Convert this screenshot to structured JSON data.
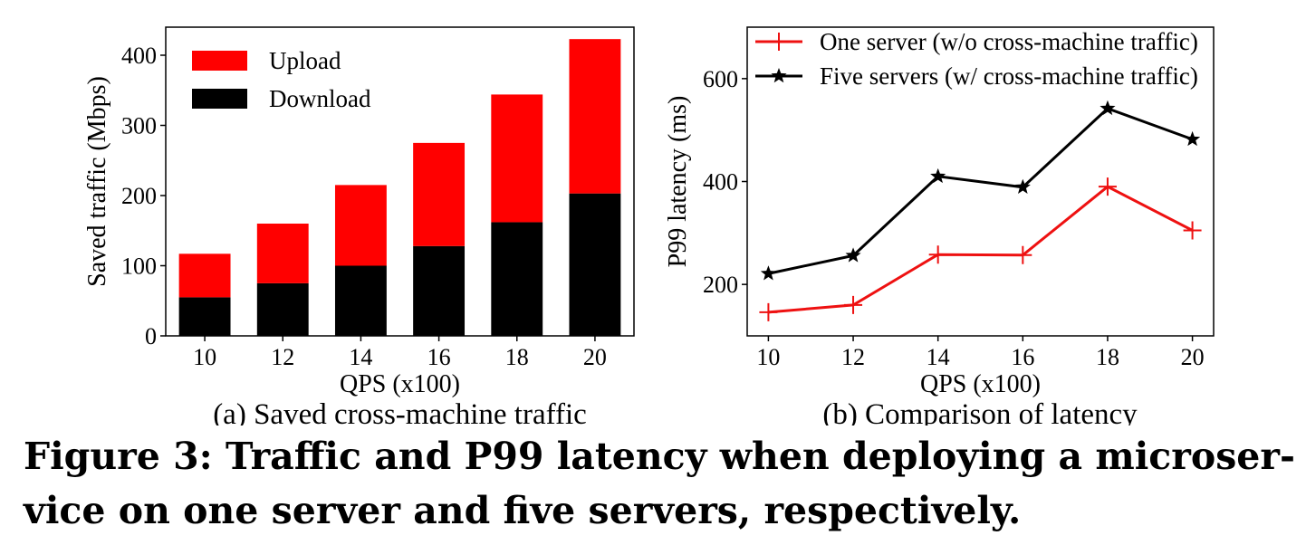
{
  "chart_data": [
    {
      "type": "bar",
      "subcaption": "(a) Saved cross-machine traffic",
      "xlabel": "QPS (x100)",
      "ylabel": "Saved traffic (Mbps)",
      "categories": [
        "10",
        "12",
        "14",
        "16",
        "18",
        "20"
      ],
      "stacked": true,
      "series": [
        {
          "name": "Download",
          "values": [
            55,
            75,
            100,
            128,
            162,
            203
          ],
          "color": "#000000"
        },
        {
          "name": "Upload",
          "values": [
            62,
            85,
            115,
            147,
            182,
            220
          ],
          "color": "#ff0000"
        }
      ],
      "ylim": [
        0,
        440
      ],
      "yticks": [
        0,
        100,
        200,
        300,
        400
      ],
      "legend": [
        "Upload",
        "Download"
      ],
      "legend_position": "top-left",
      "grid": false
    },
    {
      "type": "line",
      "subcaption": "(b) Comparison of latency",
      "xlabel": "QPS (x100)",
      "ylabel": "P99 latency (ms)",
      "x": [
        10,
        12,
        14,
        16,
        18,
        20
      ],
      "xticks": [
        "10",
        "12",
        "14",
        "16",
        "18",
        "20"
      ],
      "series": [
        {
          "name": "One server (w/o cross-machine traffic)",
          "values": [
            146,
            160,
            258,
            257,
            390,
            305
          ],
          "color": "#ee1111",
          "marker": "plus"
        },
        {
          "name": "Five servers (w/ cross-machine traffic)",
          "values": [
            221,
            256,
            410,
            389,
            542,
            482
          ],
          "color": "#000000",
          "marker": "star"
        }
      ],
      "ylim": [
        100,
        700
      ],
      "yticks": [
        200,
        400,
        600
      ],
      "legend_position": "top-left",
      "grid": false
    }
  ],
  "caption": {
    "line1": "Figure 3: Traffic and P99 latency when deploying a microser-",
    "line2": "vice on one server and five servers, respectively."
  }
}
